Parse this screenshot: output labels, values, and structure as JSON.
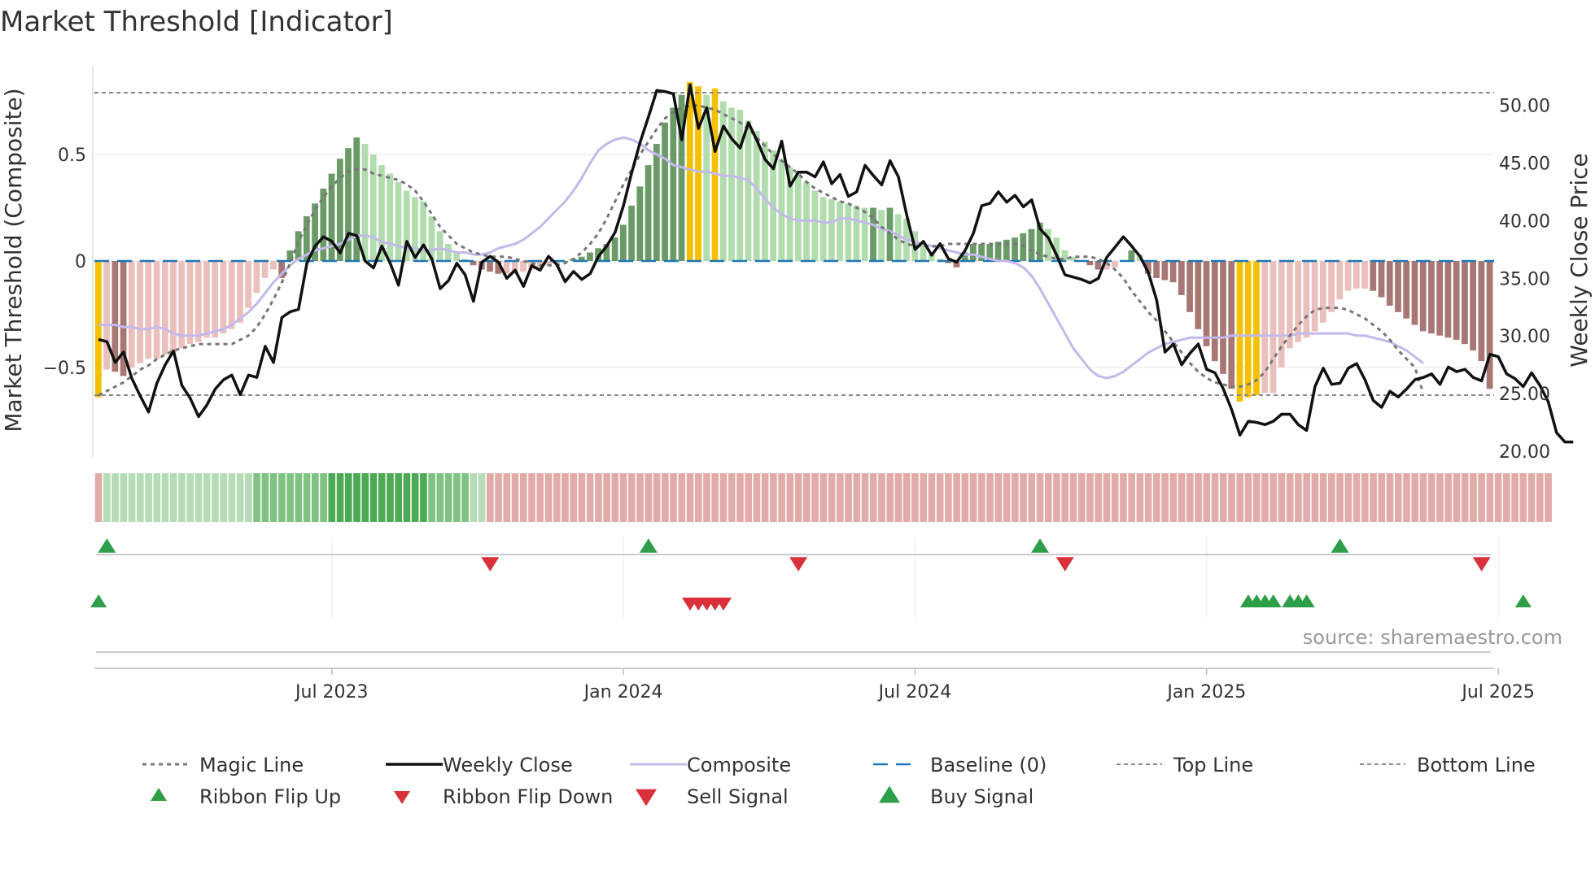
{
  "chart_data": {
    "type": "bar",
    "title": "Market Threshold [Indicator]",
    "ylabel": "Market Threshold (Composite)",
    "y2label": "Weekly Close Price",
    "source": "source: sharemaestro.com",
    "ylim": [
      -0.92,
      0.92
    ],
    "y2lim": [
      19.5,
      53.5
    ],
    "y_ticks": [
      {
        "v": 0.5,
        "label": "0.5"
      },
      {
        "v": 0,
        "label": "0"
      },
      {
        "v": -0.5,
        "label": "−0.5"
      }
    ],
    "y2_ticks": [
      {
        "v": 50,
        "label": "50.00"
      },
      {
        "v": 45,
        "label": "45.00"
      },
      {
        "v": 40,
        "label": "40.00"
      },
      {
        "v": 35,
        "label": "35.00"
      },
      {
        "v": 30,
        "label": "30.00"
      },
      {
        "v": 25,
        "label": "25.00"
      },
      {
        "v": 20,
        "label": "20.00"
      }
    ],
    "x_ticks": [
      {
        "i": 28,
        "label": "Jul 2023"
      },
      {
        "i": 63,
        "label": "Jan 2024"
      },
      {
        "i": 98,
        "label": "Jul 2024"
      },
      {
        "i": 133,
        "label": "Jan 2025"
      },
      {
        "i": 168,
        "label": "Jul 2025"
      }
    ],
    "top_line": 0.79,
    "bottom_line": -0.63,
    "composite_bars": [
      -0.64,
      -0.51,
      -0.52,
      -0.54,
      -0.5,
      -0.48,
      -0.46,
      -0.46,
      -0.44,
      -0.43,
      -0.41,
      -0.39,
      -0.38,
      -0.36,
      -0.36,
      -0.34,
      -0.32,
      -0.29,
      -0.22,
      -0.15,
      -0.08,
      -0.04,
      -0.08,
      0.05,
      0.14,
      0.21,
      0.27,
      0.34,
      0.41,
      0.48,
      0.53,
      0.58,
      0.55,
      0.5,
      0.45,
      0.41,
      0.37,
      0.33,
      0.3,
      0.28,
      0.21,
      0.14,
      0.08,
      0.04,
      0.01,
      -0.02,
      -0.04,
      -0.05,
      -0.06,
      -0.06,
      -0.06,
      -0.05,
      -0.04,
      -0.03,
      -0.02,
      -0.01,
      0,
      0.01,
      0.02,
      0.04,
      0.06,
      0.08,
      0.11,
      0.17,
      0.26,
      0.35,
      0.45,
      0.55,
      0.65,
      0.72,
      0.78,
      0.84,
      0.82,
      0.78,
      0.81,
      0.75,
      0.72,
      0.71,
      0.66,
      0.61,
      0.56,
      0.52,
      0.48,
      0.44,
      0.41,
      0.37,
      0.33,
      0.3,
      0.29,
      0.28,
      0.27,
      0.26,
      0.25,
      0.25,
      0.24,
      0.25,
      0.22,
      0.2,
      0.14,
      0.08,
      0.03,
      0.01,
      -0.01,
      -0.03,
      0.04,
      0.08,
      0.08,
      0.08,
      0.09,
      0.1,
      0.11,
      0.13,
      0.15,
      0.18,
      0.15,
      0.11,
      0.05,
      0.02,
      0,
      -0.02,
      -0.04,
      -0.04,
      -0.03,
      0,
      0.05,
      0.03,
      -0.06,
      -0.08,
      -0.09,
      -0.1,
      -0.16,
      -0.24,
      -0.32,
      -0.4,
      -0.47,
      -0.53,
      -0.6,
      -0.66,
      -0.64,
      -0.63,
      -0.62,
      -0.62,
      -0.5,
      -0.41,
      -0.38,
      -0.36,
      -0.33,
      -0.29,
      -0.24,
      -0.18,
      -0.14,
      -0.13,
      -0.13,
      -0.14,
      -0.17,
      -0.21,
      -0.24,
      -0.27,
      -0.3,
      -0.33,
      -0.34,
      -0.35,
      -0.36,
      -0.37,
      -0.39,
      -0.42,
      -0.47,
      -0.6
    ],
    "weekly_close": [
      29.7,
      29.5,
      27.7,
      28.6,
      26.3,
      24.8,
      23.4,
      25.9,
      27.5,
      28.7,
      25.7,
      24.6,
      23,
      24,
      25.4,
      26.2,
      26.6,
      24.9,
      26.6,
      26.4,
      29.1,
      27.7,
      31.6,
      32.1,
      32.3,
      36.3,
      37.8,
      38.6,
      38.2,
      37.2,
      38.9,
      38.7,
      36.5,
      35.9,
      37.8,
      36.3,
      34.4,
      38.2,
      36.8,
      37.9,
      36.7,
      34.1,
      34.8,
      36.3,
      35.3,
      33,
      36.4,
      36.9,
      36.4,
      35,
      35.7,
      34.3,
      36.1,
      35.7,
      36.9,
      36.2,
      34.7,
      35.6,
      34.9,
      35.4,
      36.9,
      37.8,
      39,
      41.3,
      44.2,
      46.8,
      49,
      51.3,
      51.2,
      51,
      47,
      51.8,
      48,
      49.8,
      46,
      48.2,
      47.1,
      46.3,
      48.5,
      47,
      45.3,
      44.5,
      46.9,
      43,
      44.2,
      44.2,
      43.8,
      45.1,
      43.2,
      44,
      42.1,
      42.5,
      44.8,
      43.9,
      43.1,
      45.2,
      43.8,
      40.5,
      37.5,
      38.2,
      37,
      38,
      36.7,
      36.4,
      37.4,
      38.9,
      41.3,
      41.5,
      42.5,
      41.6,
      42.2,
      41.2,
      41.8,
      39.3,
      38.5,
      37,
      35.3,
      35.1,
      34.9,
      34.6,
      35,
      36.8,
      37.7,
      38.6,
      37.8,
      36.9,
      35.5,
      33.1,
      28.6,
      29.3,
      27.5,
      28.5,
      29.3,
      27.1,
      26.8,
      25.4,
      23.6,
      21.4,
      22.6,
      22.5,
      22.3,
      22.6,
      23.2,
      23.2,
      22.3,
      21.8,
      25.6,
      27.2,
      25.8,
      25.9,
      27.2,
      27.6,
      26.2,
      24.4,
      23.8,
      25.2,
      24.7,
      25.4,
      26.2,
      26.4,
      26.7,
      25.8,
      27.3,
      26.9,
      27.1,
      26.4,
      26.1,
      28.4,
      28.2,
      26.7,
      26.3,
      25.6,
      26.8,
      25.7,
      24.3,
      21.6,
      20.8,
      20.8
    ],
    "magic_line": [
      -0.63,
      -0.61,
      -0.59,
      -0.57,
      -0.54,
      -0.51,
      -0.49,
      -0.46,
      -0.44,
      -0.42,
      -0.41,
      -0.4,
      -0.39,
      -0.39,
      -0.39,
      -0.39,
      -0.39,
      -0.37,
      -0.35,
      -0.31,
      -0.25,
      -0.18,
      -0.1,
      -0.01,
      0.09,
      0.17,
      0.24,
      0.3,
      0.35,
      0.39,
      0.42,
      0.43,
      0.43,
      0.41,
      0.4,
      0.39,
      0.38,
      0.36,
      0.33,
      0.28,
      0.22,
      0.16,
      0.12,
      0.08,
      0.06,
      0.04,
      0.03,
      0.02,
      0.02,
      0.02,
      0.01,
      0,
      -0.01,
      -0.02,
      -0.02,
      -0.02,
      -0.01,
      0.01,
      0.04,
      0.08,
      0.13,
      0.2,
      0.28,
      0.36,
      0.43,
      0.5,
      0.56,
      0.62,
      0.67,
      0.7,
      0.72,
      0.73,
      0.73,
      0.72,
      0.71,
      0.69,
      0.67,
      0.65,
      0.62,
      0.58,
      0.54,
      0.5,
      0.47,
      0.44,
      0.41,
      0.37,
      0.34,
      0.32,
      0.3,
      0.28,
      0.27,
      0.25,
      0.23,
      0.2,
      0.16,
      0.13,
      0.1,
      0.08,
      0.07,
      0.07,
      0.07,
      0.07,
      0.08,
      0.08,
      0.08,
      0.08,
      0.08,
      0.08,
      0.08,
      0.08,
      0.08,
      0.07,
      0.05,
      0.03,
      0.02,
      0.01,
      0.01,
      0.02,
      0.02,
      0.02,
      0.01,
      -0.01,
      -0.04,
      -0.08,
      -0.14,
      -0.19,
      -0.24,
      -0.28,
      -0.33,
      -0.38,
      -0.43,
      -0.48,
      -0.52,
      -0.55,
      -0.57,
      -0.58,
      -0.59,
      -0.59,
      -0.58,
      -0.56,
      -0.52,
      -0.46,
      -0.4,
      -0.35,
      -0.3,
      -0.26,
      -0.23,
      -0.22,
      -0.22,
      -0.22,
      -0.23,
      -0.25,
      -0.27,
      -0.3,
      -0.33,
      -0.37,
      -0.42,
      -0.46,
      -0.5,
      -0.62
    ],
    "composite_line": [
      -0.3,
      -0.3,
      -0.3,
      -0.31,
      -0.31,
      -0.32,
      -0.32,
      -0.31,
      -0.32,
      -0.34,
      -0.35,
      -0.35,
      -0.35,
      -0.34,
      -0.33,
      -0.32,
      -0.3,
      -0.27,
      -0.24,
      -0.2,
      -0.15,
      -0.1,
      -0.06,
      -0.02,
      0.01,
      0.03,
      0.05,
      0.06,
      0.07,
      0.08,
      0.1,
      0.12,
      0.12,
      0.11,
      0.09,
      0.08,
      0.07,
      0.06,
      0.06,
      0.05,
      0.05,
      0.06,
      0.05,
      0.04,
      0.04,
      0.03,
      0.03,
      0.04,
      0.06,
      0.07,
      0.08,
      0.1,
      0.13,
      0.16,
      0.2,
      0.24,
      0.28,
      0.33,
      0.39,
      0.46,
      0.52,
      0.55,
      0.57,
      0.58,
      0.57,
      0.55,
      0.52,
      0.5,
      0.48,
      0.45,
      0.44,
      0.43,
      0.42,
      0.42,
      0.41,
      0.4,
      0.4,
      0.39,
      0.38,
      0.34,
      0.29,
      0.25,
      0.22,
      0.2,
      0.19,
      0.19,
      0.19,
      0.18,
      0.18,
      0.2,
      0.2,
      0.19,
      0.18,
      0.17,
      0.15,
      0.14,
      0.12,
      0.1,
      0.09,
      0.08,
      0.07,
      0.06,
      0.05,
      0.04,
      0.03,
      0.03,
      0.02,
      0.01,
      0,
      0,
      -0.01,
      -0.03,
      -0.07,
      -0.13,
      -0.2,
      -0.27,
      -0.34,
      -0.41,
      -0.46,
      -0.51,
      -0.54,
      -0.55,
      -0.54,
      -0.52,
      -0.49,
      -0.46,
      -0.43,
      -0.41,
      -0.39,
      -0.38,
      -0.37,
      -0.36,
      -0.36,
      -0.36,
      -0.36,
      -0.36,
      -0.35,
      -0.35,
      -0.35,
      -0.35,
      -0.35,
      -0.35,
      -0.35,
      -0.35,
      -0.34,
      -0.34,
      -0.34,
      -0.34,
      -0.34,
      -0.34,
      -0.34,
      -0.35,
      -0.35,
      -0.36,
      -0.37,
      -0.38,
      -0.4,
      -0.42,
      -0.45,
      -0.48
    ],
    "ribbon": [
      -1,
      1,
      1,
      1,
      1,
      1,
      1,
      1,
      1,
      1,
      1,
      1,
      1,
      1,
      1,
      1,
      1,
      1,
      1,
      2,
      2,
      2,
      2,
      2,
      2,
      2,
      2,
      2,
      3,
      3,
      3,
      3,
      3,
      3,
      3,
      3,
      3,
      3,
      3,
      3,
      2,
      2,
      2,
      2,
      2,
      1,
      1,
      -1,
      -1,
      -1,
      -1,
      -1,
      -1,
      -1,
      -1,
      -1,
      -1,
      -1,
      -1,
      -1,
      -1,
      -1,
      -1,
      -1,
      -1,
      -1,
      -1,
      -1,
      -1,
      -1,
      -1,
      -1,
      -1,
      -1,
      -1,
      -1,
      -1,
      -1,
      -1,
      -1,
      -1,
      -1,
      -1,
      -1,
      -1,
      -1,
      -1,
      -1,
      -1,
      -1,
      -1,
      -1,
      -1,
      -1,
      -1,
      -1,
      -1,
      -1,
      -1,
      -1,
      -1,
      -1,
      -1,
      -1,
      -1,
      -1,
      -1,
      -1,
      -1,
      -1,
      -1,
      -1,
      -1,
      -1,
      -1,
      -1,
      -1,
      -1,
      -1,
      -1,
      -1,
      -1,
      -1,
      -1,
      -1,
      -1,
      -1,
      -1,
      -1,
      -1,
      -1,
      -1,
      -1,
      -1,
      -1,
      -1,
      -1,
      -1,
      -1,
      -1,
      -1,
      -1,
      -1,
      -1,
      -1,
      -1,
      -1,
      -1,
      -1,
      -1,
      -1,
      -1,
      -1,
      -1,
      -1,
      -1,
      -1,
      -1,
      -1,
      -1,
      -1,
      -1,
      -1,
      -1,
      -1,
      -1,
      -1,
      -1,
      -1,
      -1,
      -1,
      -1,
      -1,
      -1,
      -1
    ],
    "ribbon_flip_up": [
      1,
      66,
      113,
      149
    ],
    "ribbon_flip_down": [
      47,
      84,
      116,
      166
    ],
    "buy_signals": [
      0,
      138,
      139,
      140,
      141,
      143,
      144,
      145,
      171
    ],
    "sell_signals": [
      71,
      72,
      73,
      74,
      75
    ],
    "legend": [
      {
        "key": "magic",
        "label": "Magic Line"
      },
      {
        "key": "close",
        "label": "Weekly Close"
      },
      {
        "key": "comp",
        "label": "Composite"
      },
      {
        "key": "base",
        "label": "Baseline (0)"
      },
      {
        "key": "top",
        "label": "Top Line"
      },
      {
        "key": "bottom",
        "label": "Bottom Line"
      },
      {
        "key": "flipup",
        "label": "Ribbon Flip Up"
      },
      {
        "key": "flipdown",
        "label": "Ribbon Flip Down"
      },
      {
        "key": "sell",
        "label": "Sell Signal"
      },
      {
        "key": "buy",
        "label": "Buy Signal"
      }
    ],
    "colors": {
      "gold": "#f5c000",
      "pink": "#ebc0bc",
      "red_dark": "#a97773",
      "green_light": "#b1dcad",
      "green_dark": "#6a9a66",
      "close": "#111111",
      "composite": "#c4b9eb",
      "magic": "#777777",
      "baseline": "#1f77b4",
      "ref": "#888888",
      "signal_green": "#2e9e48",
      "signal_red": "#d9303a"
    }
  }
}
